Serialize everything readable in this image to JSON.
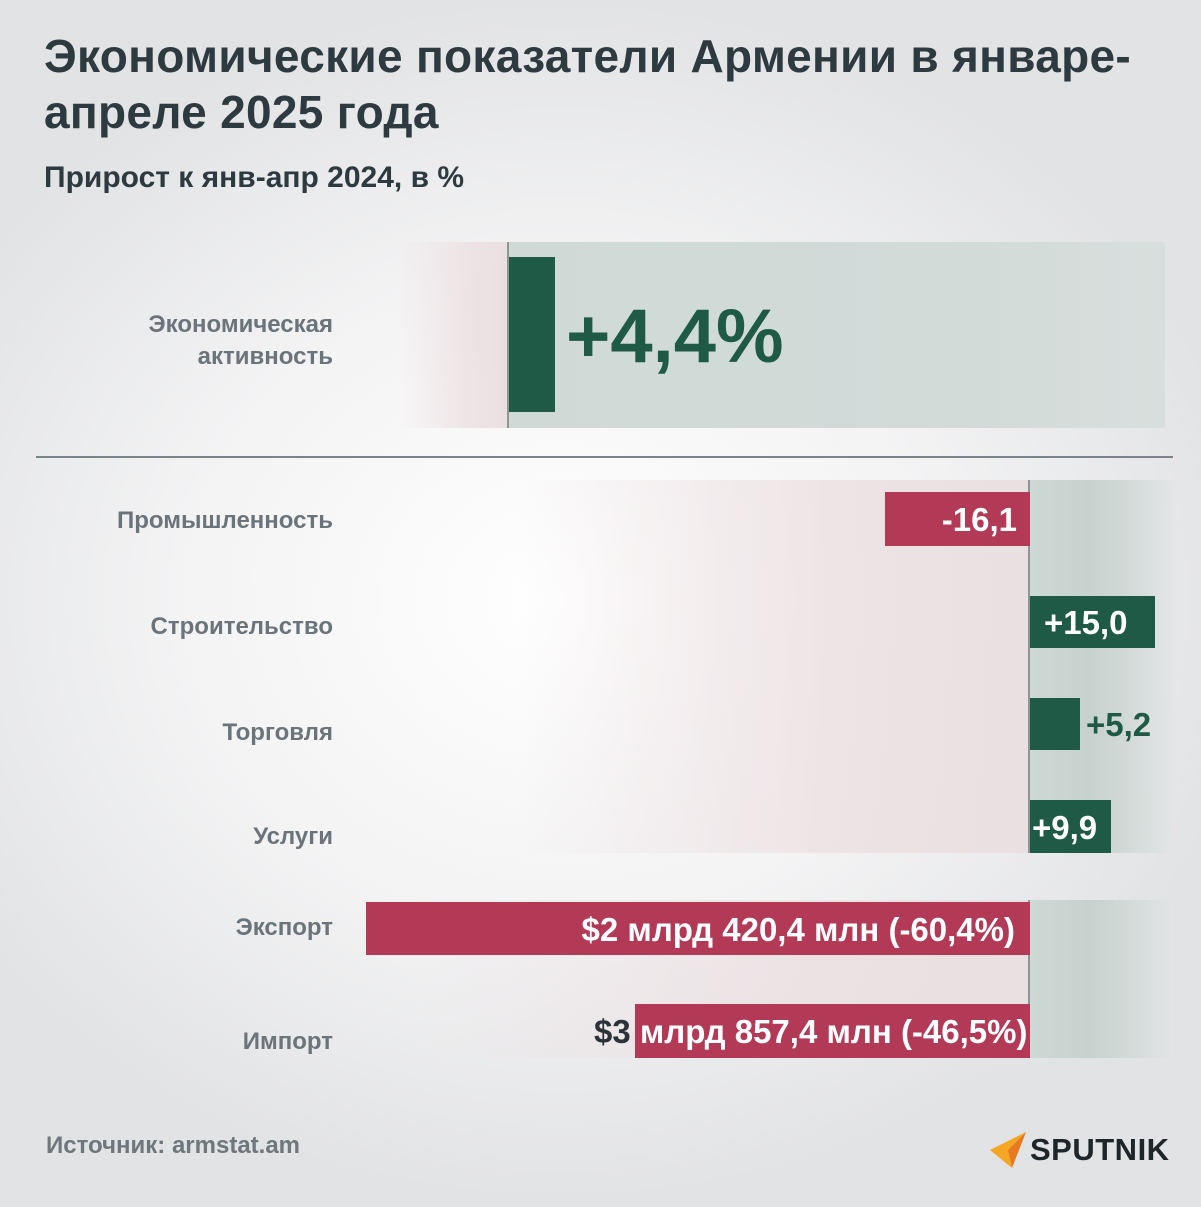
{
  "title": "Экономические показатели Армении в январе-апреле 2025 года",
  "subtitle": "Прирост к янв-апр 2024, в %",
  "source": "Источник: armstat.am",
  "brand": "SPUTNIK",
  "colors": {
    "positive": "#1e5a45",
    "negative": "#b23a57",
    "label": "#6a747a"
  },
  "icons": {
    "logo": "sputnik-arrow-icon"
  },
  "chart_data": [
    {
      "type": "bar",
      "categories": [
        "Экономическая активность"
      ],
      "label_lines": [
        [
          "Экономическая",
          "активность"
        ]
      ],
      "values": [
        4.4
      ],
      "value_labels": [
        "+4,4%"
      ]
    },
    {
      "type": "bar",
      "orientation": "horizontal",
      "categories": [
        "Промышленность",
        "Строительство",
        "Торговля",
        "Услуги",
        "Экспорт",
        "Импорт"
      ],
      "values": [
        -16.1,
        15.0,
        5.2,
        9.9,
        -60.4,
        -46.5
      ],
      "value_labels": [
        "-16,1",
        "+15,0",
        "+5,2",
        "+9,9",
        "$2 млрд 420,4 млн (-60,4%)",
        "$3 млрд 857,4 млн (-46,5%)"
      ],
      "import_label_parts": [
        "$3",
        " млрд 857,4 млн (-46,5%)"
      ]
    }
  ]
}
